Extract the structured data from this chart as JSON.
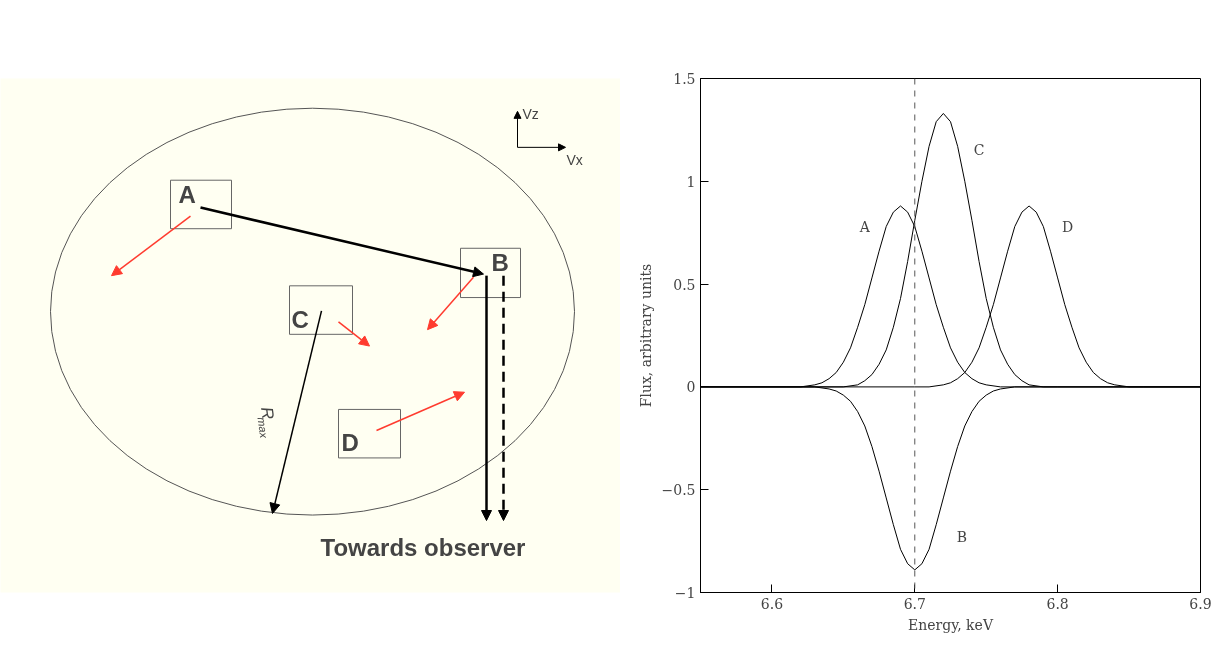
{
  "chart_data": {
    "type": "line",
    "xlabel": "Energy, keV",
    "ylabel": "Flux, arbitrary units",
    "xlim": [
      6.55,
      6.9
    ],
    "xticks": [
      6.6,
      6.7,
      6.8,
      6.9
    ],
    "ylim": [
      -1,
      1.5
    ],
    "yticks": [
      {
        "value": -1,
        "label": "−1"
      },
      {
        "value": -0.5,
        "label": "−0.5"
      },
      0,
      0.5,
      1,
      1.5
    ],
    "grid": false,
    "series": [
      {
        "name": "A",
        "color": "#000000",
        "x": [
          6.55,
          6.61,
          6.62,
          6.63,
          6.635,
          6.64,
          6.645,
          6.65,
          6.655,
          6.66,
          6.665,
          6.67,
          6.675,
          6.68,
          6.685,
          6.69,
          6.695,
          6.7,
          6.705,
          6.71,
          6.715,
          6.72,
          6.725,
          6.73,
          6.735,
          6.74,
          6.745,
          6.75,
          6.76,
          6.77,
          6.9
        ],
        "values": [
          0,
          0,
          0,
          0.01,
          0.02,
          0.04,
          0.07,
          0.12,
          0.19,
          0.29,
          0.4,
          0.53,
          0.66,
          0.78,
          0.85,
          0.88,
          0.85,
          0.78,
          0.66,
          0.53,
          0.4,
          0.29,
          0.19,
          0.12,
          0.07,
          0.04,
          0.02,
          0.01,
          0,
          0,
          0
        ]
      },
      {
        "name": "C",
        "color": "#000000",
        "x": [
          6.55,
          6.64,
          6.65,
          6.66,
          6.665,
          6.67,
          6.675,
          6.68,
          6.685,
          6.69,
          6.695,
          6.7,
          6.705,
          6.71,
          6.715,
          6.72,
          6.725,
          6.73,
          6.735,
          6.74,
          6.745,
          6.75,
          6.755,
          6.76,
          6.765,
          6.77,
          6.775,
          6.78,
          6.79,
          6.8,
          6.9
        ],
        "values": [
          0,
          0,
          0,
          0.01,
          0.03,
          0.06,
          0.11,
          0.18,
          0.29,
          0.43,
          0.61,
          0.81,
          1.0,
          1.17,
          1.29,
          1.33,
          1.29,
          1.17,
          1.0,
          0.81,
          0.61,
          0.43,
          0.29,
          0.18,
          0.11,
          0.06,
          0.03,
          0.01,
          0,
          0,
          0
        ]
      },
      {
        "name": "D",
        "color": "#000000",
        "x": [
          6.55,
          6.7,
          6.71,
          6.72,
          6.725,
          6.73,
          6.735,
          6.74,
          6.745,
          6.75,
          6.755,
          6.76,
          6.765,
          6.77,
          6.775,
          6.78,
          6.785,
          6.79,
          6.795,
          6.8,
          6.805,
          6.81,
          6.815,
          6.82,
          6.825,
          6.83,
          6.835,
          6.84,
          6.85,
          6.86,
          6.9
        ],
        "values": [
          0,
          0,
          0,
          0.01,
          0.02,
          0.04,
          0.07,
          0.12,
          0.19,
          0.29,
          0.4,
          0.53,
          0.66,
          0.78,
          0.85,
          0.88,
          0.85,
          0.78,
          0.66,
          0.53,
          0.4,
          0.29,
          0.19,
          0.12,
          0.07,
          0.04,
          0.02,
          0.01,
          0,
          0,
          0
        ]
      },
      {
        "name": "B",
        "color": "#000000",
        "x": [
          6.55,
          6.62,
          6.63,
          6.64,
          6.645,
          6.65,
          6.655,
          6.66,
          6.665,
          6.67,
          6.675,
          6.68,
          6.685,
          6.69,
          6.695,
          6.7,
          6.705,
          6.71,
          6.715,
          6.72,
          6.725,
          6.73,
          6.735,
          6.74,
          6.745,
          6.75,
          6.755,
          6.76,
          6.77,
          6.78,
          6.9
        ],
        "values": [
          0,
          0,
          0,
          -0.01,
          -0.02,
          -0.04,
          -0.07,
          -0.12,
          -0.19,
          -0.29,
          -0.41,
          -0.54,
          -0.67,
          -0.79,
          -0.86,
          -0.89,
          -0.86,
          -0.79,
          -0.67,
          -0.54,
          -0.41,
          -0.29,
          -0.19,
          -0.12,
          -0.07,
          -0.04,
          -0.02,
          -0.01,
          0,
          0,
          0
        ]
      }
    ],
    "annotations": [
      "Vz",
      "Vx",
      "A",
      "B",
      "C",
      "D",
      "R$_{max}$",
      "Towards observer"
    ],
    "ref_lines": [
      {
        "axis": "x",
        "value": 6.7,
        "color": "#555555",
        "line_style": "dashed"
      }
    ]
  }
}
